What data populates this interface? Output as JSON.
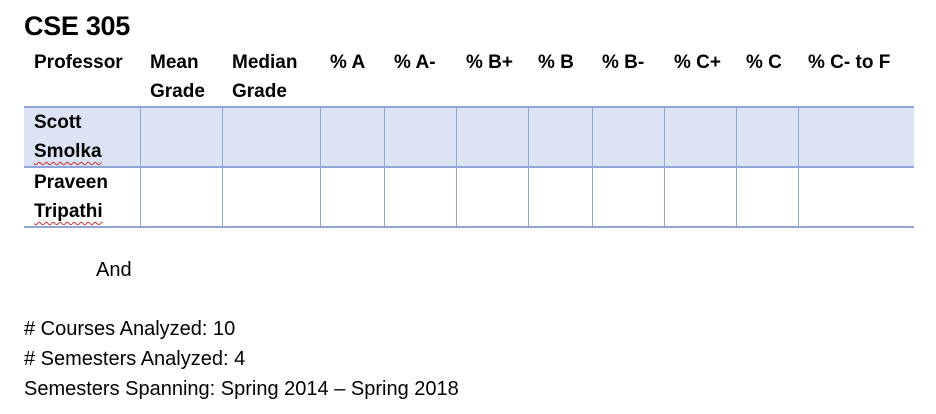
{
  "title": "CSE 305",
  "table": {
    "headers": [
      {
        "line1": "Professor",
        "line2": ""
      },
      {
        "line1": "Mean",
        "line2": "Grade"
      },
      {
        "line1": "Median",
        "line2": "Grade"
      },
      {
        "line1": "% A",
        "line2": ""
      },
      {
        "line1": "% A-",
        "line2": ""
      },
      {
        "line1": "% B+",
        "line2": ""
      },
      {
        "line1": "% B",
        "line2": ""
      },
      {
        "line1": "% B-",
        "line2": ""
      },
      {
        "line1": "% C+",
        "line2": ""
      },
      {
        "line1": "% C",
        "line2": ""
      },
      {
        "line1": "% C- to F",
        "line2": ""
      }
    ],
    "rows": [
      {
        "first": "Scott",
        "last": "Smolka",
        "cells": [
          "",
          "",
          "",
          "",
          "",
          "",
          "",
          "",
          "",
          ""
        ]
      },
      {
        "first": "Praveen",
        "last": "Tripathi",
        "cells": [
          "",
          "",
          "",
          "",
          "",
          "",
          "",
          "",
          "",
          ""
        ]
      }
    ]
  },
  "and_text": "And",
  "stats": {
    "courses": "# Courses Analyzed: 10",
    "semesters": "# Semesters Analyzed: 4",
    "spanning": "Semesters Spanning: Spring 2014 – Spring 2018"
  }
}
